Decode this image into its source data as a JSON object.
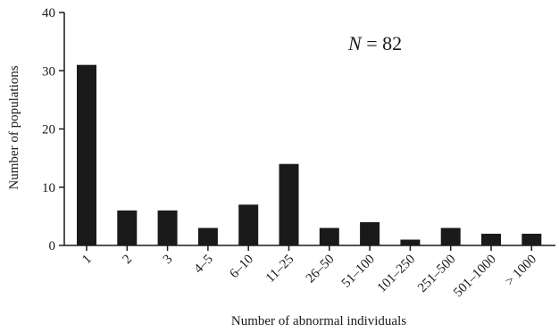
{
  "chart_data": {
    "type": "bar",
    "categories": [
      "1",
      "2",
      "3",
      "4–5",
      "6–10",
      "11–25",
      "26–50",
      "51–100",
      "101–250",
      "251–500",
      "501–1000",
      "> 1000"
    ],
    "values": [
      31,
      6,
      6,
      3,
      7,
      14,
      3,
      4,
      1,
      3,
      2,
      2
    ],
    "xlabel": "Number of abnormal individuals",
    "ylabel": "Number of populations",
    "ylim": [
      0,
      40
    ],
    "yticks": [
      0,
      10,
      20,
      30,
      40
    ],
    "annotation": {
      "symbol": "N",
      "text": " = 82"
    },
    "bar_color": "#1a1a1a",
    "grid": false,
    "legend": "none"
  }
}
